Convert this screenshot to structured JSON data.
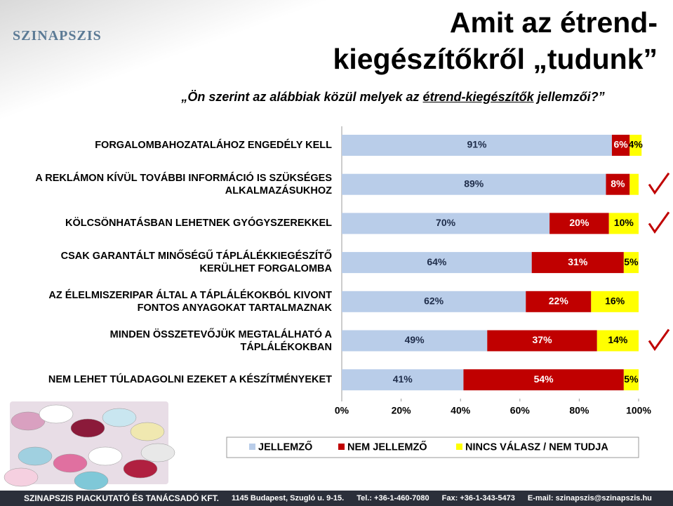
{
  "logo": "SZINAPSZIS",
  "footer": {
    "company": "SZINAPSZIS PIACKUTATÓ ÉS TANÁCSADÓ KFT.",
    "address": "1145 Budapest, Szugló u. 9-15.",
    "tel": "Tel.: +36-1-460-7080",
    "fax": "Fax: +36-1-343-5473",
    "email": "E-mail: szinapszis@szinapszis.hu"
  },
  "chart_data": {
    "type": "stacked_bar_horizontal",
    "title": "Amit az étrend-kiegészítőkről „tudunk”",
    "subtitle": [
      "„Ön szerint az alábbiak közül melyek az ",
      "étrend-kiegészítők",
      " jellemzői?”"
    ],
    "categories": [
      "FORGALOMBAHOZATALÁHOZ ENGEDÉLY KELL",
      "A REKLÁMON KÍVÜL TOVÁBBI INFORMÁCIÓ IS SZÜKSÉGES ALKALMAZÁSUKHOZ",
      "KÖLCSÖNHATÁSBAN LEHETNEK GYÓGYSZEREKKEL",
      "CSAK GARANTÁLT MINŐSÉGŰ TÁPLÁLÉKKIEGÉSZÍTŐ KERÜLHET FORGALOMBA",
      "AZ ÉLELMISZERIPAR ÁLTAL A TÁPLÁLÉKOKBÓL KIVONT FONTOS ANYAGOKAT TARTALMAZNAK",
      "MINDEN ÖSSZETEVŐJÜK MEGTALÁLHATÓ A TÁPLÁLÉKOKBAN",
      "NEM LEHET TÚLADAGOLNI EZEKET A KÉSZÍTMÉNYEKET"
    ],
    "checked": [
      false,
      true,
      true,
      false,
      false,
      true,
      false
    ],
    "series": [
      {
        "name": "JELLEMZŐ",
        "color": "#b9cde9",
        "values": [
          91,
          89,
          70,
          64,
          62,
          49,
          41
        ],
        "value_labels": [
          "91%",
          "89%",
          "70%",
          "64%",
          "62%",
          "49%",
          "41%"
        ]
      },
      {
        "name": "NEM JELLEMZŐ",
        "color": "#c00000",
        "values": [
          6,
          8,
          20,
          31,
          22,
          37,
          54
        ],
        "value_labels": [
          "6%",
          "8%",
          "20%",
          "31%",
          "22%",
          "37%",
          "54%"
        ]
      },
      {
        "name": "NINCS VÁLASZ / NEM TUDJA",
        "color": "#ffff00",
        "values": [
          4,
          3,
          10,
          5,
          16,
          14,
          5
        ],
        "value_labels": [
          "4%",
          null,
          "10%",
          "5%",
          "16%",
          "14%",
          "5%"
        ]
      }
    ],
    "xlim": [
      0,
      100
    ],
    "xticks": [
      {
        "value": 0,
        "label": "0%"
      },
      {
        "value": 20,
        "label": "20%"
      },
      {
        "value": 40,
        "label": "40%"
      },
      {
        "value": 60,
        "label": "60%"
      },
      {
        "value": 80,
        "label": "80%"
      },
      {
        "value": 100,
        "label": "100%"
      }
    ]
  }
}
